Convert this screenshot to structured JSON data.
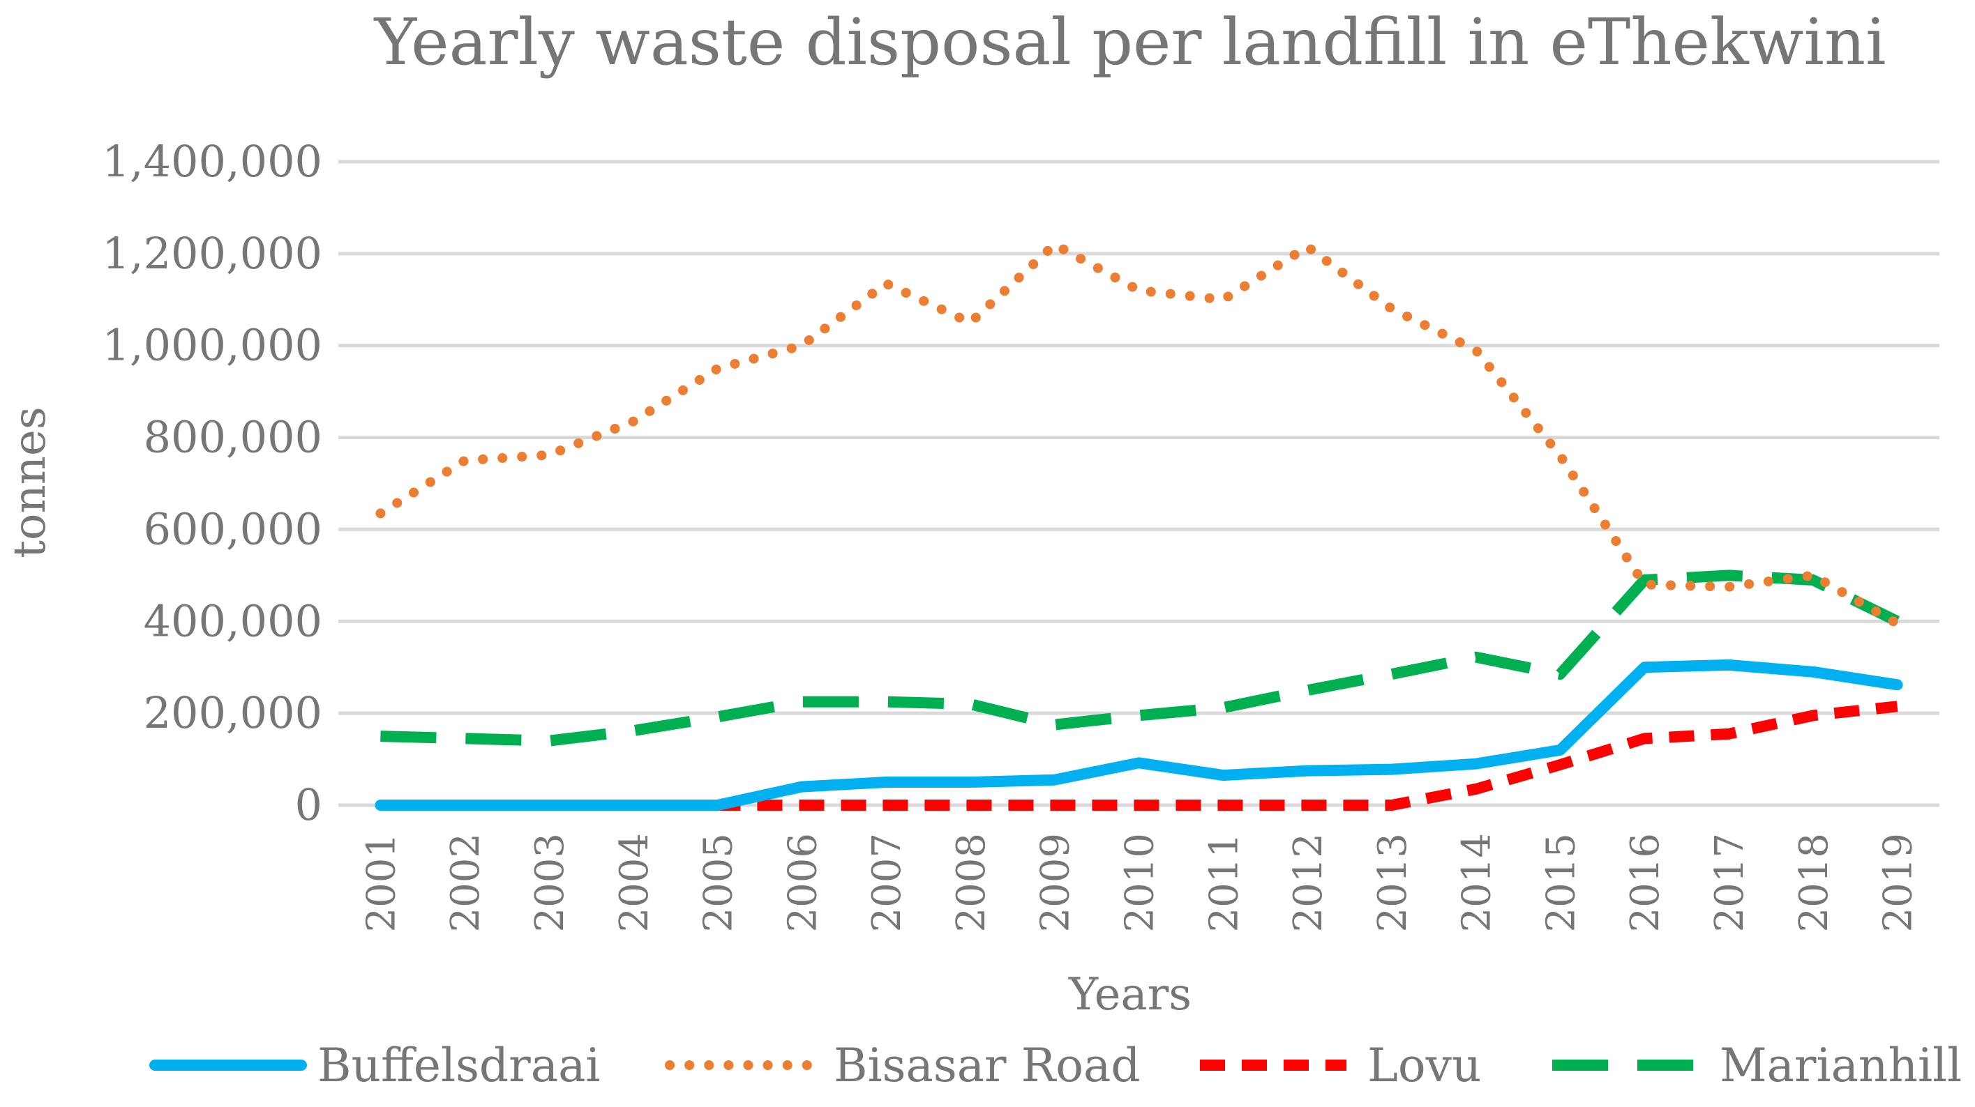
{
  "chart_data": {
    "type": "line",
    "title": "Yearly waste disposal per landfill in eThekwini",
    "xlabel": "Years",
    "ylabel": "tonnes",
    "ylim": [
      0,
      1400000
    ],
    "yticks": [
      0,
      200000,
      400000,
      600000,
      800000,
      1000000,
      1200000,
      1400000
    ],
    "ytick_labels": [
      "0",
      "200,000",
      "400,000",
      "600,000",
      "800,000",
      "1,000,000",
      "1,200,000",
      "1,400,000"
    ],
    "grid": true,
    "legend_position": "bottom",
    "categories": [
      "2001",
      "2002",
      "2003",
      "2004",
      "2005",
      "2006",
      "2007",
      "2008",
      "2009",
      "2010",
      "2011",
      "2012",
      "2013",
      "2014",
      "2015",
      "2016",
      "2017",
      "2018",
      "2019"
    ],
    "series": [
      {
        "name": "Buffelsdraai",
        "color": "#00b0f0",
        "style": "solid",
        "values": [
          0,
          0,
          0,
          0,
          0,
          40000,
          50000,
          50000,
          55000,
          92000,
          65000,
          75000,
          78000,
          90000,
          120000,
          300000,
          305000,
          290000,
          262000
        ]
      },
      {
        "name": "Bisasar Road",
        "color": "#ed7d31",
        "style": "dotted",
        "values": [
          635000,
          750000,
          762000,
          835000,
          950000,
          1000000,
          1135000,
          1050000,
          1220000,
          1120000,
          1100000,
          1215000,
          1080000,
          990000,
          760000,
          480000,
          475000,
          500000,
          395000
        ]
      },
      {
        "name": "Lovu",
        "color": "#ff0000",
        "style": "dashed",
        "values": [
          0,
          0,
          0,
          0,
          0,
          0,
          0,
          0,
          0,
          0,
          0,
          0,
          0,
          35000,
          88000,
          145000,
          155000,
          195000,
          215000
        ]
      },
      {
        "name": "Marianhill",
        "color": "#00b050",
        "style": "longdash",
        "values": [
          150000,
          145000,
          140000,
          162000,
          192000,
          225000,
          225000,
          220000,
          175000,
          195000,
          212000,
          250000,
          285000,
          322000,
          285000,
          490000,
          500000,
          490000,
          400000
        ]
      }
    ]
  }
}
